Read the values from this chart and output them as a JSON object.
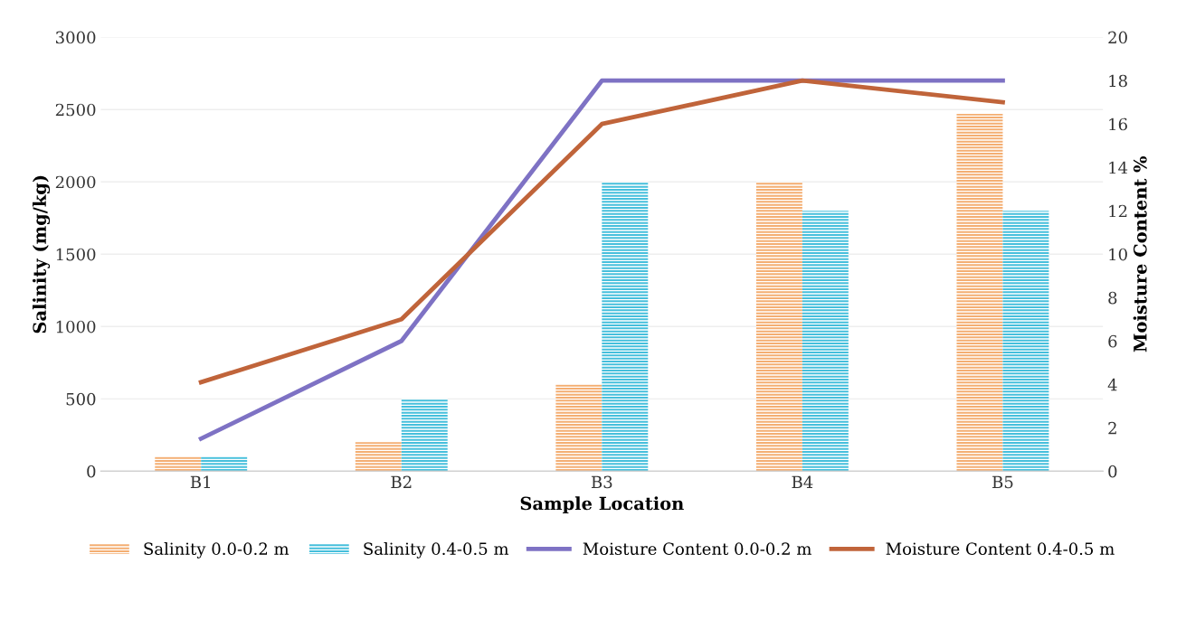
{
  "chart_data": {
    "type": "bar",
    "xlabel": "Sample Location",
    "ylabel": "Salinity (mg/kg)",
    "y2label": "Moisture Content %",
    "categories": [
      "B1",
      "B2",
      "B3",
      "B4",
      "B5"
    ],
    "series": [
      {
        "name": "Salinity 0.0-0.2 m",
        "color": "#f4ae72",
        "values": [
          100,
          200,
          600,
          2000,
          2470
        ]
      },
      {
        "name": "Salinity 0.4-0.5 m",
        "color": "#45bfdc",
        "values": [
          100,
          500,
          2000,
          1800,
          1800
        ]
      },
      {
        "name": "Moisture Content 0.0-0.2 m",
        "type": "line",
        "axis": "y2",
        "color": "#7e72c4",
        "values": [
          1.5,
          6,
          18,
          18,
          18
        ]
      },
      {
        "name": "Moisture Content 0.4-0.5 m",
        "type": "line",
        "axis": "y2",
        "color": "#c0643a",
        "values": [
          4.1,
          7,
          16,
          18,
          17
        ]
      }
    ],
    "ylim": [
      0,
      3000
    ],
    "yticks": [
      0,
      500,
      1000,
      1500,
      2000,
      2500,
      3000
    ],
    "y2lim": [
      0,
      20
    ],
    "y2ticks": [
      0,
      2,
      4,
      6,
      8,
      10,
      12,
      14,
      16,
      18,
      20
    ],
    "grid": "y",
    "legend": "bottom"
  }
}
